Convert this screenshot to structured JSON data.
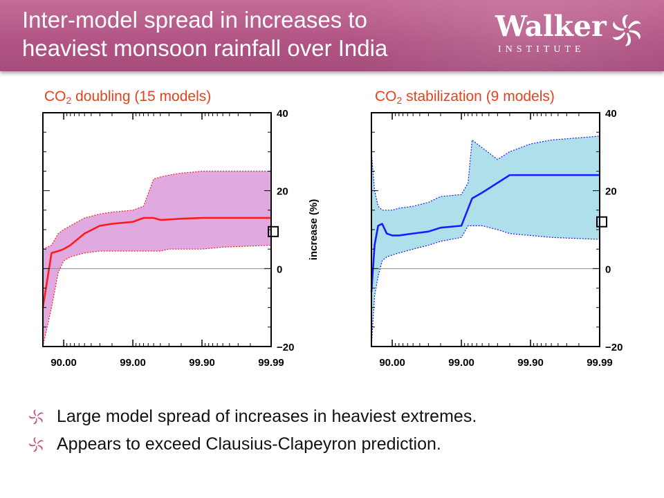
{
  "header": {
    "title_line1": "Inter-model spread in increases to",
    "title_line2": "heaviest monsoon rainfall over India",
    "logo_word": "Walker",
    "logo_sub": "INSTITUTE"
  },
  "colors": {
    "header_bg": "#b05483",
    "panel_title": "#e8401c",
    "doubling_fill": "#dda0dd",
    "doubling_line": "#ff1a1a",
    "stabilization_fill": "#a6dce8",
    "stabilization_line": "#1a1aff"
  },
  "chart_data": [
    {
      "type": "line",
      "title_pre": "CO",
      "title_sub": "2",
      "title_post": " doubling (15 models)",
      "xlabel": "",
      "ylabel": "increase (%)",
      "x_tick_labels": [
        "90.00",
        "99.00",
        "99.90",
        "99.99"
      ],
      "y_tick_labels": [
        "40",
        "20",
        "0",
        "−20"
      ],
      "ylim": [
        -20,
        40
      ],
      "x_scale": "log of (100 - percentile)",
      "zero_line": true,
      "series": [
        {
          "role": "multi-model mean",
          "x": [
            80,
            85,
            88,
            90,
            92,
            95,
            97,
            98,
            99,
            99.3,
            99.5,
            99.6,
            99.7,
            99.8,
            99.9,
            99.95,
            99.99
          ],
          "y": [
            -10,
            4,
            4.5,
            5,
            6,
            9,
            11,
            11.5,
            12,
            13,
            13,
            12.5,
            12.6,
            12.8,
            13,
            13,
            13
          ]
        },
        {
          "role": "spread upper",
          "x": [
            80,
            85,
            88,
            90,
            92,
            95,
            97,
            98,
            99,
            99.3,
            99.5,
            99.6,
            99.7,
            99.8,
            99.9,
            99.95,
            99.99
          ],
          "y": [
            5,
            6,
            9,
            10,
            11,
            13,
            14,
            14.5,
            15,
            16,
            23,
            23.5,
            24,
            24.5,
            25,
            25,
            25
          ]
        },
        {
          "role": "spread lower",
          "x": [
            80,
            85,
            88,
            90,
            92,
            95,
            97,
            98,
            99,
            99.3,
            99.5,
            99.6,
            99.7,
            99.8,
            99.9,
            99.95,
            99.99
          ],
          "y": [
            -20,
            -10,
            -1,
            2,
            3,
            4,
            4.5,
            4.5,
            4.5,
            4.5,
            4.5,
            4.5,
            5,
            5,
            5,
            5.5,
            6
          ]
        }
      ],
      "cc_marker_y": 9.5
    },
    {
      "type": "line",
      "title_pre": "CO",
      "title_sub": "2",
      "title_post": " stabilization (9 models)",
      "xlabel": "",
      "ylabel": "",
      "x_tick_labels": [
        "90.00",
        "99.00",
        "99.90",
        "99.99"
      ],
      "y_tick_labels": [
        "40",
        "20",
        "0",
        "−20"
      ],
      "ylim": [
        -20,
        40
      ],
      "x_scale": "log of (100 - percentile)",
      "zero_line": true,
      "series": [
        {
          "role": "multi-model mean",
          "x": [
            80,
            82,
            84,
            86,
            88,
            90,
            92,
            95,
            97,
            98,
            99,
            99.3,
            99.5,
            99.7,
            99.8,
            99.85,
            99.9,
            99.95,
            99.99
          ],
          "y": [
            -6,
            6,
            11,
            11.5,
            9,
            8.5,
            8.5,
            9,
            9.5,
            10.5,
            11,
            18,
            19.5,
            22,
            24,
            24,
            24,
            24,
            24
          ]
        },
        {
          "role": "spread upper",
          "x": [
            80,
            82,
            84,
            86,
            88,
            90,
            92,
            95,
            97,
            98,
            99,
            99.2,
            99.3,
            99.5,
            99.7,
            99.8,
            99.9,
            99.95,
            99.99
          ],
          "y": [
            30,
            20,
            16,
            15,
            15,
            15,
            15.5,
            16,
            17,
            18.5,
            19,
            22,
            33,
            31,
            28,
            30,
            32,
            33,
            34
          ]
        },
        {
          "role": "spread lower",
          "x": [
            80,
            82,
            84,
            86,
            88,
            90,
            92,
            95,
            97,
            98,
            99,
            99.2,
            99.3,
            99.5,
            99.7,
            99.8,
            99.9,
            99.95,
            99.99
          ],
          "y": [
            -20,
            -7,
            -2,
            2,
            3,
            3.5,
            4,
            5,
            6,
            7,
            8,
            11,
            11,
            11,
            10,
            9,
            8.5,
            8,
            7.5
          ]
        }
      ],
      "cc_marker_y": 12
    }
  ],
  "bullets": [
    "Large model spread of increases in heaviest extremes.",
    "Appears to exceed Clausius-Clapeyron prediction."
  ]
}
